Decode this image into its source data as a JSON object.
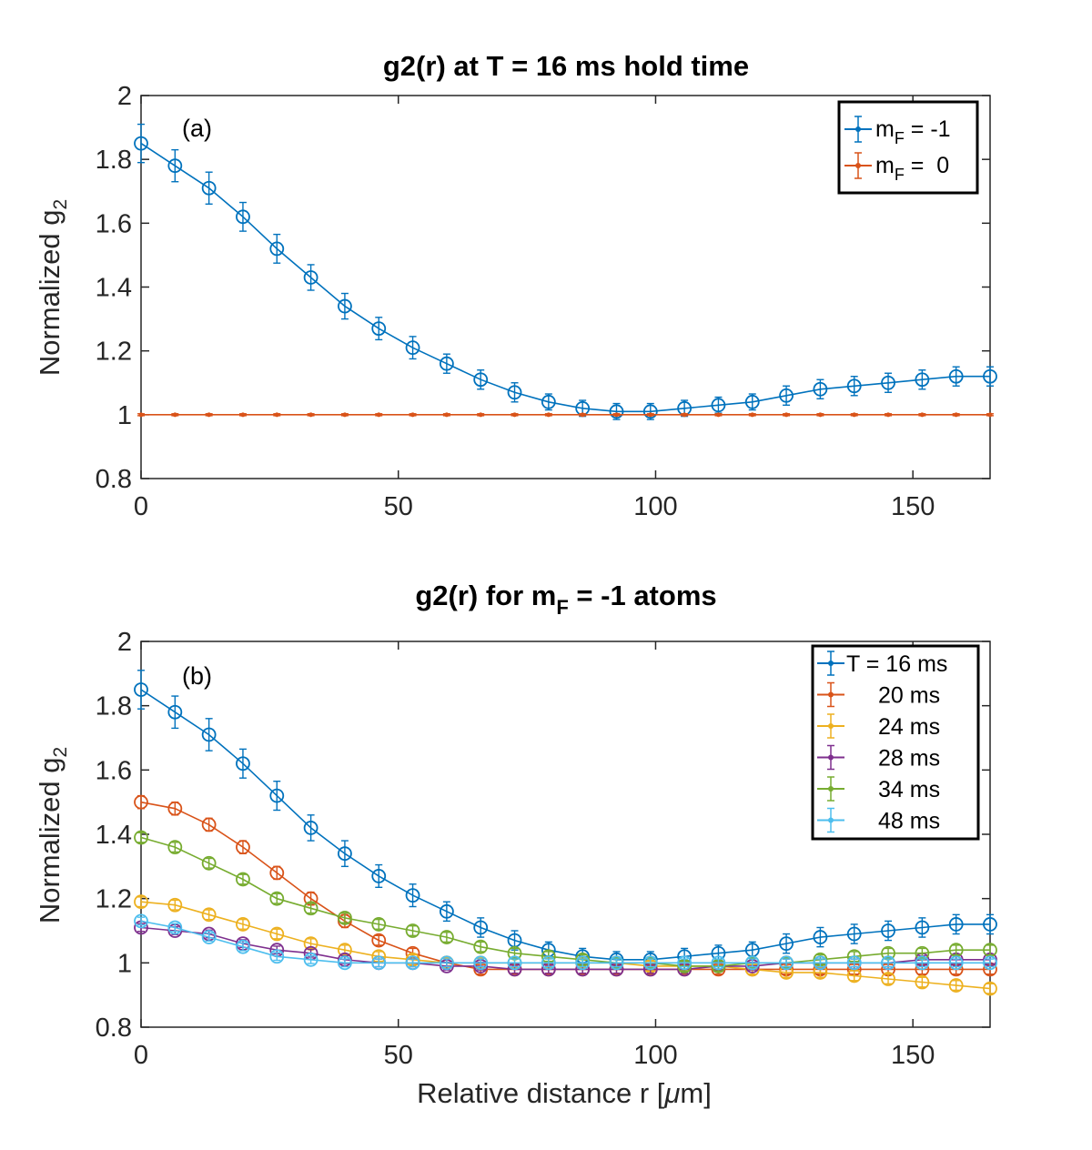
{
  "colors": {
    "blue": "#0072BD",
    "orange": "#D95319",
    "yellow": "#EDB120",
    "purple": "#7E2F8E",
    "green": "#77AC30",
    "cyan": "#4DBEEE"
  },
  "chart_data": [
    {
      "type": "line",
      "title": "g2(r) at T = 16 ms hold time",
      "panel_label": "(a)",
      "xlabel": "",
      "ylabel": "Normalized g",
      "ylabel_sub": "2",
      "xlim": [
        0,
        165
      ],
      "ylim": [
        0.8,
        2
      ],
      "xticks": [
        0,
        50,
        100,
        150
      ],
      "yticks": [
        0.8,
        1,
        1.2,
        1.4,
        1.6,
        1.8,
        2
      ],
      "ytick_labels": [
        "0.8",
        "1",
        "1.2",
        "1.4",
        "1.6",
        "1.8",
        "2"
      ],
      "grid": false,
      "legend_position": "top-right",
      "x": [
        0,
        6.6,
        13.2,
        19.8,
        26.4,
        33,
        39.6,
        46.2,
        52.8,
        59.4,
        66,
        72.6,
        79.2,
        85.8,
        92.4,
        99,
        105.6,
        112.2,
        118.8,
        125.4,
        132,
        138.6,
        145.2,
        151.8,
        158.4,
        165
      ],
      "series": [
        {
          "legend_main": "m",
          "legend_sub": "F",
          "legend_rest": " = -1",
          "color": "blue",
          "marker": "circle",
          "y": [
            1.85,
            1.78,
            1.71,
            1.62,
            1.52,
            1.43,
            1.34,
            1.27,
            1.21,
            1.16,
            1.11,
            1.07,
            1.04,
            1.02,
            1.01,
            1.01,
            1.02,
            1.03,
            1.04,
            1.06,
            1.08,
            1.09,
            1.1,
            1.11,
            1.12,
            1.12
          ],
          "err": [
            0.06,
            0.05,
            0.05,
            0.045,
            0.045,
            0.04,
            0.04,
            0.035,
            0.035,
            0.03,
            0.03,
            0.03,
            0.025,
            0.025,
            0.025,
            0.025,
            0.025,
            0.025,
            0.025,
            0.03,
            0.03,
            0.03,
            0.03,
            0.03,
            0.03,
            0.03
          ]
        },
        {
          "legend_main": "m",
          "legend_sub": "F",
          "legend_rest": " =  0",
          "color": "orange",
          "marker": "dot",
          "y": [
            1.0,
            1.0,
            1.0,
            1.0,
            1.0,
            1.0,
            1.0,
            1.0,
            1.0,
            1.0,
            1.0,
            1.0,
            1.0,
            1.0,
            1.0,
            1.0,
            1.0,
            1.0,
            1.0,
            1.0,
            1.0,
            1.0,
            1.0,
            1.0,
            1.0,
            1.0
          ],
          "err": [
            0.003,
            0.003,
            0.003,
            0.003,
            0.003,
            0.003,
            0.003,
            0.003,
            0.003,
            0.003,
            0.003,
            0.003,
            0.003,
            0.003,
            0.003,
            0.003,
            0.003,
            0.003,
            0.003,
            0.003,
            0.003,
            0.003,
            0.003,
            0.003,
            0.003,
            0.003
          ]
        }
      ]
    },
    {
      "type": "line",
      "title_main": "g2(r) for m",
      "title_sub": "F",
      "title_rest": " = -1 atoms",
      "panel_label": "(b)",
      "xlabel": "Relative distance r [",
      "xlabel_mu": "μ",
      "xlabel_rest": "m]",
      "ylabel": "Normalized g",
      "ylabel_sub": "2",
      "xlim": [
        0,
        165
      ],
      "ylim": [
        0.8,
        2
      ],
      "xticks": [
        0,
        50,
        100,
        150
      ],
      "yticks": [
        0.8,
        1,
        1.2,
        1.4,
        1.6,
        1.8,
        2
      ],
      "ytick_labels": [
        "0.8",
        "1",
        "1.2",
        "1.4",
        "1.6",
        "1.8",
        "2"
      ],
      "grid": false,
      "legend_position": "top-right",
      "x": [
        0,
        6.6,
        13.2,
        19.8,
        26.4,
        33,
        39.6,
        46.2,
        52.8,
        59.4,
        66,
        72.6,
        79.2,
        85.8,
        92.4,
        99,
        105.6,
        112.2,
        118.8,
        125.4,
        132,
        138.6,
        145.2,
        151.8,
        158.4,
        165
      ],
      "series": [
        {
          "legend": "T = 16 ms",
          "color": "blue",
          "y": [
            1.85,
            1.78,
            1.71,
            1.62,
            1.52,
            1.42,
            1.34,
            1.27,
            1.21,
            1.16,
            1.11,
            1.07,
            1.04,
            1.02,
            1.01,
            1.01,
            1.02,
            1.03,
            1.04,
            1.06,
            1.08,
            1.09,
            1.1,
            1.11,
            1.12,
            1.12
          ],
          "err": [
            0.06,
            0.05,
            0.05,
            0.045,
            0.045,
            0.04,
            0.04,
            0.035,
            0.035,
            0.03,
            0.03,
            0.03,
            0.025,
            0.025,
            0.025,
            0.025,
            0.025,
            0.025,
            0.025,
            0.03,
            0.03,
            0.03,
            0.03,
            0.03,
            0.03,
            0.03
          ]
        },
        {
          "legend": "20 ms",
          "color": "orange",
          "y": [
            1.5,
            1.48,
            1.43,
            1.36,
            1.28,
            1.2,
            1.13,
            1.07,
            1.03,
            1.0,
            0.98,
            0.98,
            0.98,
            0.98,
            0.98,
            0.98,
            0.98,
            0.98,
            0.98,
            0.98,
            0.98,
            0.98,
            0.98,
            0.98,
            0.98,
            0.98
          ],
          "err": [
            0.02,
            0.02,
            0.02,
            0.02,
            0.02,
            0.02,
            0.02,
            0.015,
            0.015,
            0.015,
            0.015,
            0.015,
            0.015,
            0.015,
            0.015,
            0.015,
            0.015,
            0.015,
            0.015,
            0.015,
            0.015,
            0.015,
            0.015,
            0.015,
            0.015,
            0.015
          ]
        },
        {
          "legend": "24 ms",
          "color": "yellow",
          "y": [
            1.19,
            1.18,
            1.15,
            1.12,
            1.09,
            1.06,
            1.04,
            1.02,
            1.01,
            1.0,
            1.0,
            1.0,
            1.0,
            1.0,
            1.0,
            0.99,
            0.99,
            0.99,
            0.98,
            0.97,
            0.97,
            0.96,
            0.95,
            0.94,
            0.93,
            0.92
          ],
          "err": [
            0.015,
            0.015,
            0.015,
            0.015,
            0.015,
            0.015,
            0.015,
            0.015,
            0.015,
            0.015,
            0.015,
            0.015,
            0.015,
            0.015,
            0.015,
            0.015,
            0.015,
            0.015,
            0.015,
            0.015,
            0.015,
            0.015,
            0.015,
            0.015,
            0.015,
            0.015
          ]
        },
        {
          "legend": "28 ms",
          "color": "purple",
          "y": [
            1.11,
            1.1,
            1.09,
            1.06,
            1.04,
            1.03,
            1.01,
            1.0,
            1.0,
            0.99,
            0.99,
            0.98,
            0.98,
            0.98,
            0.98,
            0.98,
            0.98,
            0.99,
            0.99,
            1.0,
            1.0,
            1.0,
            1.0,
            1.01,
            1.01,
            1.01
          ],
          "err": [
            0.012,
            0.012,
            0.012,
            0.012,
            0.012,
            0.012,
            0.012,
            0.012,
            0.012,
            0.012,
            0.012,
            0.012,
            0.012,
            0.012,
            0.012,
            0.012,
            0.012,
            0.012,
            0.012,
            0.012,
            0.012,
            0.012,
            0.012,
            0.012,
            0.012,
            0.012
          ]
        },
        {
          "legend": "34 ms",
          "color": "green",
          "y": [
            1.39,
            1.36,
            1.31,
            1.26,
            1.2,
            1.17,
            1.14,
            1.12,
            1.1,
            1.08,
            1.05,
            1.03,
            1.02,
            1.01,
            1.0,
            1.0,
            0.99,
            0.99,
            1.0,
            1.0,
            1.01,
            1.02,
            1.03,
            1.03,
            1.04,
            1.04
          ],
          "err": [
            0.015,
            0.015,
            0.015,
            0.015,
            0.015,
            0.015,
            0.015,
            0.015,
            0.015,
            0.015,
            0.015,
            0.015,
            0.015,
            0.015,
            0.015,
            0.015,
            0.015,
            0.015,
            0.015,
            0.015,
            0.015,
            0.015,
            0.015,
            0.015,
            0.015,
            0.015
          ]
        },
        {
          "legend": "48 ms",
          "color": "cyan",
          "y": [
            1.13,
            1.11,
            1.08,
            1.05,
            1.02,
            1.01,
            1.0,
            1.0,
            1.0,
            1.0,
            1.0,
            1.0,
            1.0,
            1.0,
            1.0,
            1.0,
            1.0,
            1.0,
            1.0,
            1.0,
            1.0,
            1.0,
            1.0,
            1.0,
            1.0,
            1.0
          ],
          "err": [
            0.012,
            0.012,
            0.012,
            0.012,
            0.012,
            0.012,
            0.012,
            0.012,
            0.012,
            0.012,
            0.012,
            0.012,
            0.012,
            0.012,
            0.012,
            0.012,
            0.012,
            0.012,
            0.012,
            0.012,
            0.012,
            0.012,
            0.012,
            0.012,
            0.012,
            0.012
          ]
        }
      ]
    }
  ]
}
